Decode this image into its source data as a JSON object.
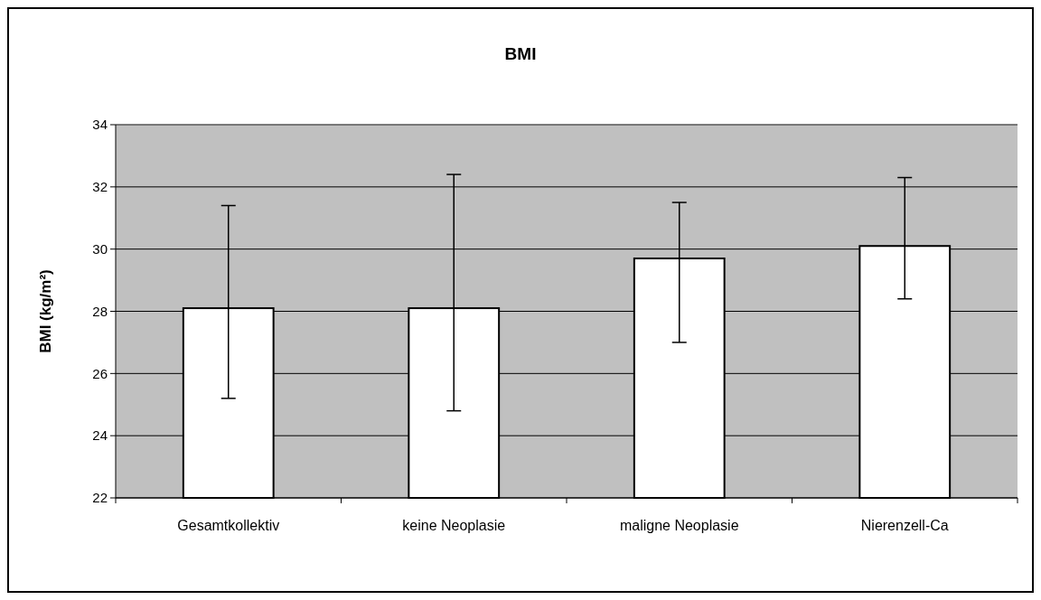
{
  "chart_data": {
    "type": "bar",
    "title": "BMI",
    "ylabel": "BMI (kg/m²)",
    "categories": [
      "Gesamtkollektiv",
      "keine Neoplasie",
      "maligne Neoplasie",
      "Nierenzell-Ca"
    ],
    "values": [
      28.1,
      28.1,
      29.7,
      30.1
    ],
    "errors": [
      [
        25.2,
        31.4
      ],
      [
        24.8,
        32.4
      ],
      [
        27.0,
        31.5
      ],
      [
        28.4,
        32.3
      ]
    ],
    "color": "#ffffff",
    "ylim": [
      22,
      34
    ],
    "yticks": [
      22,
      24,
      26,
      28,
      30,
      32,
      34
    ],
    "grid": "y"
  }
}
